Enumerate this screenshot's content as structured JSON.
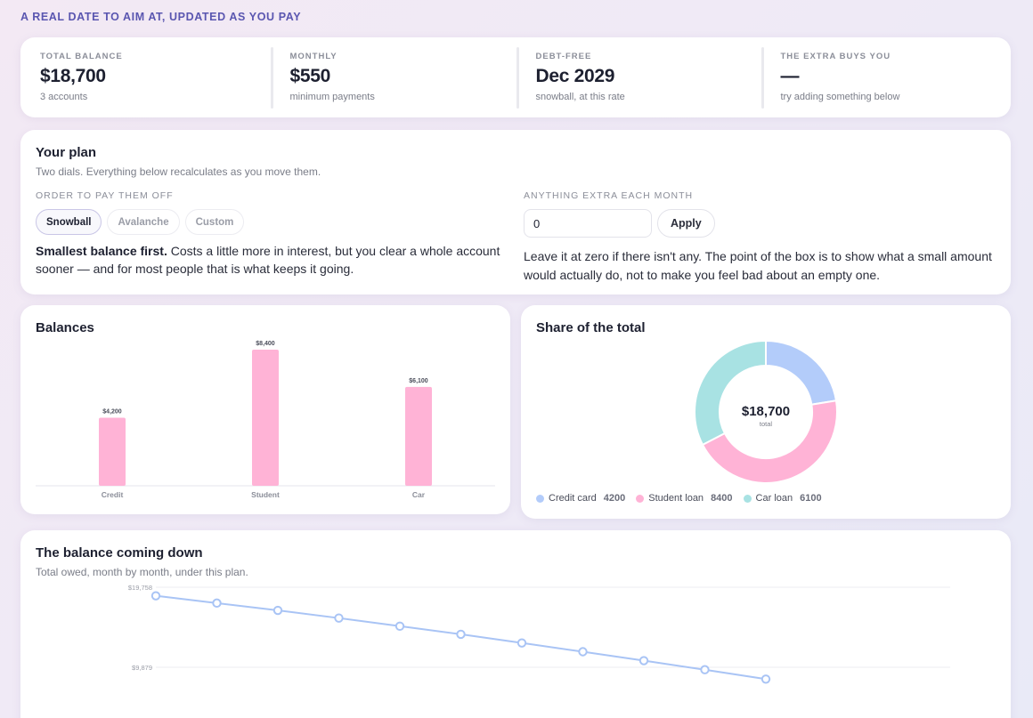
{
  "header": {
    "kicker": "A REAL DATE TO AIM AT, UPDATED AS YOU PAY"
  },
  "stats": [
    {
      "label": "TOTAL BALANCE",
      "value": "$18,700",
      "sub": "3 accounts"
    },
    {
      "label": "MONTHLY",
      "value": "$550",
      "sub": "minimum payments"
    },
    {
      "label": "DEBT-FREE",
      "value": "Dec 2029",
      "sub": "snowball, at this rate"
    },
    {
      "label": "THE EXTRA BUYS YOU",
      "value": "—",
      "sub": "try adding something below"
    }
  ],
  "plan": {
    "title": "Your plan",
    "subtitle": "Two dials. Everything below recalculates as you move them.",
    "order_label": "ORDER TO PAY THEM OFF",
    "methods": [
      "Snowball",
      "Avalanche",
      "Custom"
    ],
    "selected_method": "Snowball",
    "method_desc_bold": "Smallest balance first.",
    "method_desc": " Costs a little more in interest, but you clear a whole account sooner — and for most people that is what keeps it going.",
    "extra_label": "ANYTHING EXTRA EACH MONTH",
    "extra_value": "0",
    "apply_label": "Apply",
    "extra_desc": "Leave it at zero if there isn't any. The point of the box is to show what a small amount would actually do, not to make you feel bad about an empty one."
  },
  "colors": {
    "accent": "#5a56b0",
    "bar": "#ffb3d6",
    "credit": "#b3ccfa",
    "student": "#ffb3d6",
    "car": "#a8e2e3",
    "line": "#a9c4f5"
  },
  "chart_data": [
    {
      "type": "bar",
      "title": "Balances",
      "categories": [
        "Credit",
        "Student",
        "Car"
      ],
      "values": [
        4200,
        8400,
        6100
      ],
      "value_labels": [
        "$4,200",
        "$8,400",
        "$6,100"
      ],
      "ylim": [
        0,
        8400
      ],
      "grid": false
    },
    {
      "type": "pie",
      "title": "Share of the total",
      "center_value": "$18,700",
      "center_label": "total",
      "labels": [
        "Credit card",
        "Student loan",
        "Car loan"
      ],
      "values": [
        4200,
        8400,
        6100
      ],
      "legend": "bottom"
    },
    {
      "type": "line",
      "title": "The balance coming down",
      "subtitle": "Total owed, month by month, under this plan.",
      "y_tick_labels": [
        "$19,758",
        "$9,879"
      ],
      "ylim": [
        0,
        19758
      ],
      "grid": true,
      "values": [
        18700,
        17800,
        16900,
        15950,
        14950,
        13950,
        12880,
        11800,
        10700,
        9580,
        8420
      ]
    }
  ]
}
